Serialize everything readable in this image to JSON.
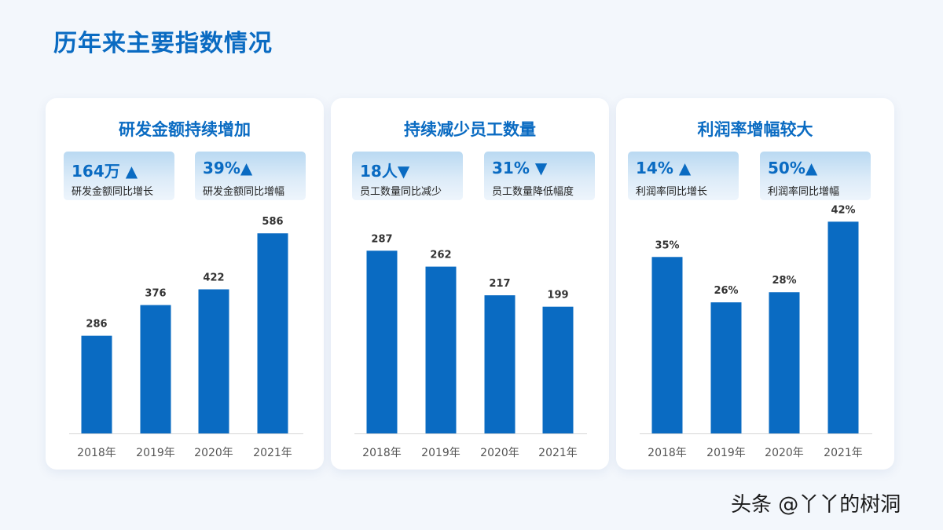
{
  "title": "历年来主要指数情况",
  "watermark": "头条 @丫丫的树洞",
  "colors": {
    "accent": "#0a6bc2",
    "bar": "#0a6bc2",
    "background": "#f3f7fc"
  },
  "panels": [
    {
      "title": "研发金额持续增加",
      "stats": [
        {
          "value": "164万 ▲",
          "label": "研发金额同比增长"
        },
        {
          "value": "39%▲",
          "label": "研发金额同比增幅"
        }
      ]
    },
    {
      "title": "持续减少员工数量",
      "stats": [
        {
          "value": "18人▼",
          "label": "员工数量同比减少"
        },
        {
          "value": "31% ▼",
          "label": "员工数量降低幅度"
        }
      ]
    },
    {
      "title": "利润率增幅较大",
      "stats": [
        {
          "value": "14% ▲",
          "label": "利润率同比增长"
        },
        {
          "value": "50%▲",
          "label": "利润率同比增幅"
        }
      ]
    }
  ],
  "chart_data": [
    {
      "type": "bar",
      "title": "研发金额持续增加",
      "categories": [
        "2018年",
        "2019年",
        "2020年",
        "2021年"
      ],
      "values": [
        286,
        376,
        422,
        586
      ],
      "data_labels": [
        "286",
        "376",
        "422",
        "586"
      ],
      "ylim": [
        0,
        660
      ],
      "grid": false,
      "legend": "none"
    },
    {
      "type": "bar",
      "title": "持续减少员工数量",
      "categories": [
        "2018年",
        "2019年",
        "2020年",
        "2021年"
      ],
      "values": [
        287,
        262,
        217,
        199
      ],
      "data_labels": [
        "287",
        "262",
        "217",
        "199"
      ],
      "ylim": [
        0,
        354
      ],
      "grid": false,
      "legend": "none"
    },
    {
      "type": "bar",
      "title": "利润率增幅较大",
      "categories": [
        "2018年",
        "2019年",
        "2020年",
        "2021年"
      ],
      "values": [
        35,
        26,
        28,
        42
      ],
      "data_labels": [
        "35%",
        "26%",
        "28%",
        "42%"
      ],
      "ylim": [
        0,
        44.7
      ],
      "grid": false,
      "legend": "none"
    }
  ]
}
